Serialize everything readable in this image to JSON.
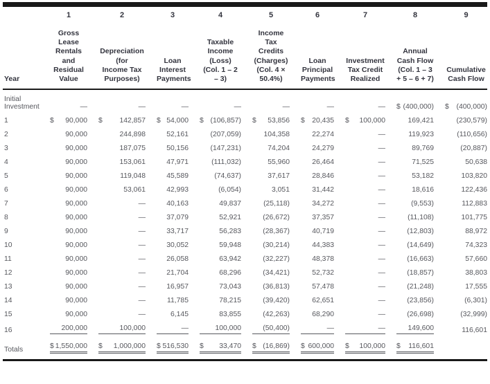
{
  "colors": {
    "rule": "#191919",
    "header_text": "#33343e",
    "body_text": "#56575d",
    "background": "#ffffff"
  },
  "table": {
    "year_header": "Year",
    "column_numbers": [
      "1",
      "2",
      "3",
      "4",
      "5",
      "6",
      "7",
      "8",
      "9"
    ],
    "column_headers": [
      "Gross\nLease\nRentals\nand\nResidual\nValue",
      "Depreciation\n(for\nIncome Tax\nPurposes)",
      "Loan\nInterest\nPayments",
      "Taxable\nIncome\n(Loss)\n(Col. 1 – 2\n– 3)",
      "Income\nTax Credits\n(Charges)\n(Col. 4 ×\n50.4%)",
      "Loan\nPrincipal\nPayments",
      "Investment\nTax Credit\nRealized",
      "Annual\nCash Flow\n(Col. 1 – 3\n+ 5 – 6 + 7)",
      "Cumulative\nCash Flow"
    ],
    "rows": [
      {
        "label": "Initial\nInvestment",
        "cells": [
          {
            "v": "—"
          },
          {
            "v": "—"
          },
          {
            "v": "—"
          },
          {
            "v": "—"
          },
          {
            "v": "—"
          },
          {
            "v": "—"
          },
          {
            "v": "—"
          },
          {
            "d": "$",
            "v": "(400,000)"
          },
          {
            "d": "$",
            "v": "(400,000)"
          }
        ]
      },
      {
        "label": "1",
        "cells": [
          {
            "d": "$",
            "v": "90,000"
          },
          {
            "d": "$",
            "v": "142,857"
          },
          {
            "d": "$",
            "v": "54,000"
          },
          {
            "d": "$",
            "v": "(106,857)"
          },
          {
            "d": "$",
            "v": "53,856"
          },
          {
            "d": "$",
            "v": "20,435"
          },
          {
            "d": "$",
            "v": "100,000"
          },
          {
            "v": "169,421"
          },
          {
            "v": "(230,579)"
          }
        ]
      },
      {
        "label": "2",
        "cells": [
          {
            "v": "90,000"
          },
          {
            "v": "244,898"
          },
          {
            "v": "52,161"
          },
          {
            "v": "(207,059)"
          },
          {
            "v": "104,358"
          },
          {
            "v": "22,274"
          },
          {
            "v": "—"
          },
          {
            "v": "119,923"
          },
          {
            "v": "(110,656)"
          }
        ]
      },
      {
        "label": "3",
        "cells": [
          {
            "v": "90,000"
          },
          {
            "v": "187,075"
          },
          {
            "v": "50,156"
          },
          {
            "v": "(147,231)"
          },
          {
            "v": "74,204"
          },
          {
            "v": "24,279"
          },
          {
            "v": "—"
          },
          {
            "v": "89,769"
          },
          {
            "v": "(20,887)"
          }
        ]
      },
      {
        "label": "4",
        "cells": [
          {
            "v": "90,000"
          },
          {
            "v": "153,061"
          },
          {
            "v": "47,971"
          },
          {
            "v": "(111,032)"
          },
          {
            "v": "55,960"
          },
          {
            "v": "26,464"
          },
          {
            "v": "—"
          },
          {
            "v": "71,525"
          },
          {
            "v": "50,638"
          }
        ]
      },
      {
        "label": "5",
        "cells": [
          {
            "v": "90,000"
          },
          {
            "v": "119,048"
          },
          {
            "v": "45,589"
          },
          {
            "v": "(74,637)"
          },
          {
            "v": "37,617"
          },
          {
            "v": "28,846"
          },
          {
            "v": "—"
          },
          {
            "v": "53,182"
          },
          {
            "v": "103,820"
          }
        ]
      },
      {
        "label": "6",
        "cells": [
          {
            "v": "90,000"
          },
          {
            "v": "53,061"
          },
          {
            "v": "42,993"
          },
          {
            "v": "(6,054)"
          },
          {
            "v": "3,051"
          },
          {
            "v": "31,442"
          },
          {
            "v": "—"
          },
          {
            "v": "18,616"
          },
          {
            "v": "122,436"
          }
        ]
      },
      {
        "label": "7",
        "cells": [
          {
            "v": "90,000"
          },
          {
            "v": "—"
          },
          {
            "v": "40,163"
          },
          {
            "v": "49,837"
          },
          {
            "v": "(25,118)"
          },
          {
            "v": "34,272"
          },
          {
            "v": "—"
          },
          {
            "v": "(9,553)"
          },
          {
            "v": "112,883"
          }
        ]
      },
      {
        "label": "8",
        "cells": [
          {
            "v": "90,000"
          },
          {
            "v": "—"
          },
          {
            "v": "37,079"
          },
          {
            "v": "52,921"
          },
          {
            "v": "(26,672)"
          },
          {
            "v": "37,357"
          },
          {
            "v": "—"
          },
          {
            "v": "(11,108)"
          },
          {
            "v": "101,775"
          }
        ]
      },
      {
        "label": "9",
        "cells": [
          {
            "v": "90,000"
          },
          {
            "v": "—"
          },
          {
            "v": "33,717"
          },
          {
            "v": "56,283"
          },
          {
            "v": "(28,367)"
          },
          {
            "v": "40,719"
          },
          {
            "v": "—"
          },
          {
            "v": "(12,803)"
          },
          {
            "v": "88,972"
          }
        ]
      },
      {
        "label": "10",
        "cells": [
          {
            "v": "90,000"
          },
          {
            "v": "—"
          },
          {
            "v": "30,052"
          },
          {
            "v": "59,948"
          },
          {
            "v": "(30,214)"
          },
          {
            "v": "44,383"
          },
          {
            "v": "—"
          },
          {
            "v": "(14,649)"
          },
          {
            "v": "74,323"
          }
        ]
      },
      {
        "label": "11",
        "cells": [
          {
            "v": "90,000"
          },
          {
            "v": "—"
          },
          {
            "v": "26,058"
          },
          {
            "v": "63,942"
          },
          {
            "v": "(32,227)"
          },
          {
            "v": "48,378"
          },
          {
            "v": "—"
          },
          {
            "v": "(16,663)"
          },
          {
            "v": "57,660"
          }
        ]
      },
      {
        "label": "12",
        "cells": [
          {
            "v": "90,000"
          },
          {
            "v": "—"
          },
          {
            "v": "21,704"
          },
          {
            "v": "68,296"
          },
          {
            "v": "(34,421)"
          },
          {
            "v": "52,732"
          },
          {
            "v": "—"
          },
          {
            "v": "(18,857)"
          },
          {
            "v": "38,803"
          }
        ]
      },
      {
        "label": "13",
        "cells": [
          {
            "v": "90,000"
          },
          {
            "v": "—"
          },
          {
            "v": "16,957"
          },
          {
            "v": "73,043"
          },
          {
            "v": "(36,813)"
          },
          {
            "v": "57,478"
          },
          {
            "v": "—"
          },
          {
            "v": "(21,248)"
          },
          {
            "v": "17,555"
          }
        ]
      },
      {
        "label": "14",
        "cells": [
          {
            "v": "90,000"
          },
          {
            "v": "—"
          },
          {
            "v": "11,785"
          },
          {
            "v": "78,215"
          },
          {
            "v": "(39,420)"
          },
          {
            "v": "62,651"
          },
          {
            "v": "—"
          },
          {
            "v": "(23,856)"
          },
          {
            "v": "(6,301)"
          }
        ]
      },
      {
        "label": "15",
        "cells": [
          {
            "v": "90,000"
          },
          {
            "v": "—"
          },
          {
            "v": "6,145"
          },
          {
            "v": "83,855"
          },
          {
            "v": "(42,263)"
          },
          {
            "v": "68,290"
          },
          {
            "v": "—"
          },
          {
            "v": "(26,698)"
          },
          {
            "v": "(32,999)"
          }
        ]
      },
      {
        "label": "16",
        "cells": [
          {
            "v": "200,000",
            "u": 1
          },
          {
            "v": "100,000",
            "u": 1
          },
          {
            "v": "—",
            "u": 1
          },
          {
            "v": "100,000",
            "u": 1
          },
          {
            "v": "(50,400)",
            "u": 1
          },
          {
            "v": "—",
            "u": 1
          },
          {
            "v": "—",
            "u": 1
          },
          {
            "v": "149,600",
            "u": 1
          },
          {
            "v": "116,601"
          }
        ]
      },
      {
        "label": "Totals",
        "cells": [
          {
            "d": "$",
            "v": "1,550,000",
            "u": 2
          },
          {
            "d": "$",
            "v": "1,000,000",
            "u": 2
          },
          {
            "d": "$",
            "v": "516,530",
            "u": 2
          },
          {
            "d": "$",
            "v": "33,470",
            "u": 2
          },
          {
            "d": "$",
            "v": "(16,869)",
            "u": 2
          },
          {
            "d": "$",
            "v": "600,000",
            "u": 2
          },
          {
            "d": "$",
            "v": "100,000",
            "u": 2
          },
          {
            "d": "$",
            "v": "116,601",
            "u": 2
          },
          {
            "v": ""
          }
        ]
      }
    ]
  }
}
